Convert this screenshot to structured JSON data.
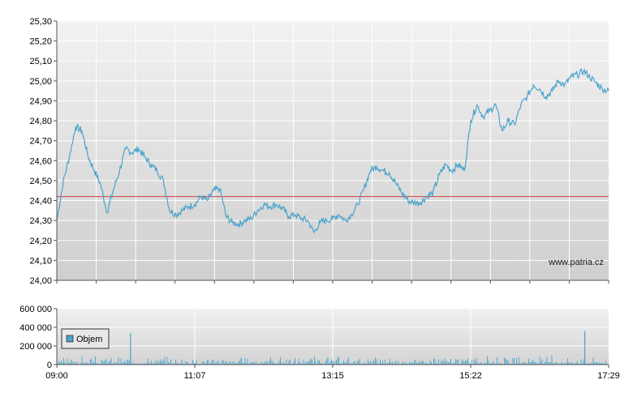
{
  "watermark": "www.patria.cz",
  "legend": {
    "label": "Objem"
  },
  "colors": {
    "price_line": "#4aa3cc",
    "reference_line": "#d04040",
    "volume_bar": "#4aa3cc",
    "grid": "#ffffff",
    "plot_top": "#f2f2f2",
    "plot_bottom": "#cfcfcf"
  },
  "chart_data": [
    {
      "type": "line",
      "title": "",
      "xlabel": "",
      "ylabel": "",
      "ylim": [
        24.0,
        25.3
      ],
      "y_ticks": [
        "25,30",
        "25,20",
        "25,10",
        "25,00",
        "24,90",
        "24,80",
        "24,70",
        "24,60",
        "24,50",
        "24,40",
        "24,30",
        "24,20",
        "24,10",
        "24,00"
      ],
      "reference_line": 24.42,
      "series": [
        {
          "values": [
            24.3,
            24.49,
            24.62,
            24.77,
            24.75,
            24.62,
            24.55,
            24.48,
            24.34,
            24.45,
            24.55,
            24.66,
            24.64,
            24.66,
            24.62,
            24.58,
            24.55,
            24.5,
            24.35,
            24.33,
            24.35,
            24.37,
            24.38,
            24.42,
            24.4,
            24.45,
            24.46,
            24.32,
            24.29,
            24.28,
            24.3,
            24.31,
            24.35,
            24.38,
            24.37,
            24.38,
            24.36,
            24.32,
            24.33,
            24.31,
            24.3,
            24.24,
            24.29,
            24.3,
            24.31,
            24.33,
            24.3,
            24.33,
            24.38,
            24.46,
            24.55,
            24.57,
            24.55,
            24.54,
            24.49,
            24.44,
            24.4,
            24.39,
            24.39,
            24.42,
            24.44,
            24.53,
            24.58,
            24.55,
            24.58,
            24.55,
            24.8,
            24.88,
            24.82,
            24.85,
            24.88,
            24.75,
            24.8,
            24.78,
            24.88,
            24.92,
            24.98,
            24.96,
            24.92,
            24.95,
            25.0,
            24.98,
            25.02,
            25.03,
            25.05,
            25.02,
            24.99,
            24.96,
            24.95
          ]
        }
      ]
    },
    {
      "type": "bar",
      "title": "",
      "xlabel": "",
      "ylabel": "",
      "ylim": [
        0,
        600000
      ],
      "y_ticks": [
        "600 000",
        "400 000",
        "200 000",
        "0"
      ],
      "x_ticks": [
        "09:00",
        "11:07",
        "13:15",
        "15:22",
        "17:29"
      ],
      "series": [
        {
          "name": "Objem",
          "spikes": [
            {
              "time": "10:08",
              "value": 340000
            },
            {
              "time": "17:07",
              "value": 360000
            }
          ],
          "typical_value": 40000
        }
      ]
    }
  ]
}
